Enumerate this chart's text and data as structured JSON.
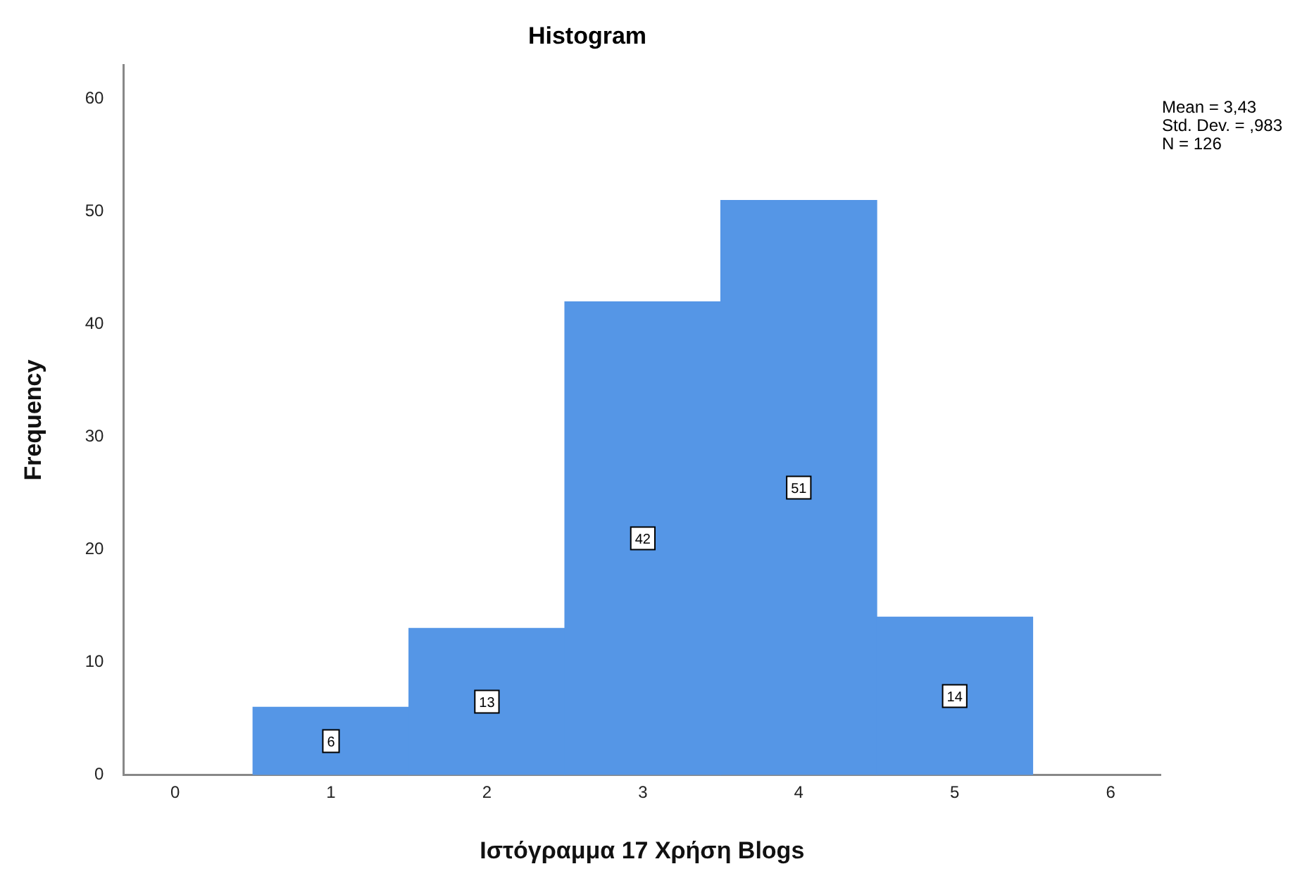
{
  "chart_data": {
    "type": "histogram",
    "title": "Histogram",
    "xlabel": "Ιστόγραμμα 17 Χρήση Blogs",
    "ylabel": "Frequency",
    "bins": [
      0.5,
      1.5,
      2.5,
      3.5,
      4.5,
      5.5
    ],
    "values": [
      6,
      13,
      42,
      51,
      14
    ],
    "color": "#5596e6",
    "data_labels": true,
    "xlim": [
      -0.33,
      6.32
    ],
    "xticks": [
      0,
      1,
      2,
      3,
      4,
      5,
      6
    ],
    "ylim": [
      0,
      63
    ],
    "yticks": [
      0,
      10,
      20,
      30,
      40,
      50,
      60
    ],
    "grid": false,
    "legend": false,
    "annotations": [
      "Mean = 3,43\nStd. Dev. = ,983\nN = 126"
    ]
  }
}
